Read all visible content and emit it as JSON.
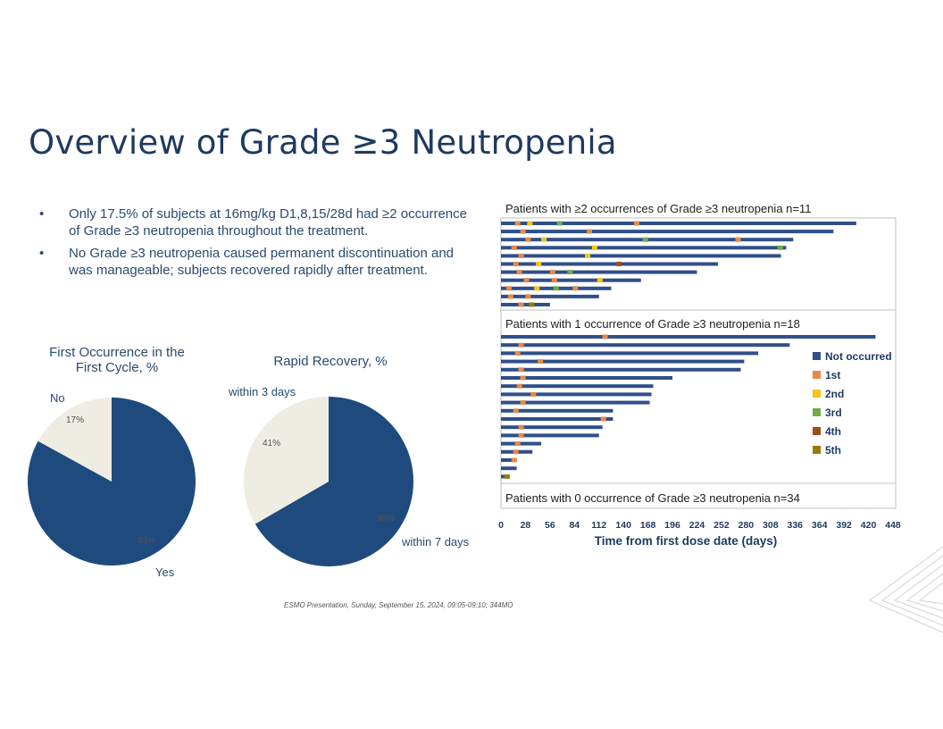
{
  "title": "Overview of Grade ≥3 Neutropenia",
  "bullets": [
    "Only 17.5% of subjects at 16mg/kg D1,8,15/28d had ≥2 occurrence of Grade ≥3 neutropenia throughout the treatment.",
    "No Grade ≥3 neutropenia caused permanent discontinuation and was manageable; subjects recovered rapidly after treatment."
  ],
  "bullet_marker": "•",
  "footer": "ESMO Presentation, Sunday, September 15, 2024, 09:05-09:10; 344MO",
  "colors": {
    "navy": "#1f4a7d",
    "beige": "#eeece3",
    "orange": "#e8894a",
    "yellow": "#f5c518",
    "green": "#70ad47",
    "brown": "#9c4f19",
    "olive": "#9a7b0a"
  },
  "chart_data": [
    {
      "type": "pie",
      "title": "First Occurrence in the First Cycle, %",
      "title_lines": [
        "First Occurrence in the",
        "First Cycle, %"
      ],
      "labels": [
        "Yes",
        "No"
      ],
      "values": [
        83,
        17
      ],
      "value_labels": [
        "83%",
        "17%"
      ]
    },
    {
      "type": "pie",
      "title": "Rapid Recovery, %",
      "labels": [
        "within 7 days",
        "within 3 days"
      ],
      "values": [
        90,
        41
      ],
      "value_labels": [
        "90%",
        "41%"
      ],
      "note": "slices drawn as 2:1 proportion as shown"
    },
    {
      "type": "bar",
      "orientation": "horizontal",
      "subtype": "swimmer",
      "xlabel": "Time from first dose date (days)",
      "xticks": [
        0,
        28,
        56,
        84,
        112,
        140,
        168,
        196,
        224,
        252,
        280,
        308,
        336,
        364,
        392,
        420,
        448
      ],
      "xlim": [
        0,
        448
      ],
      "legend": [
        "Not occurred",
        "1st",
        "2nd",
        "3rd",
        "4th",
        "5th"
      ],
      "legend_position": "right",
      "groups": [
        {
          "label": "Patients with ≥2 occurrences of Grade ≥3 neutropenia n=11",
          "patients": [
            {
              "end": 406,
              "events": [
                [
                  16,
                  1
                ],
                [
                  30,
                  2
                ],
                [
                  64,
                  3
                ],
                [
                  152,
                  1
                ]
              ]
            },
            {
              "end": 380,
              "events": [
                [
                  22,
                  1
                ],
                [
                  98,
                  1
                ]
              ]
            },
            {
              "end": 334,
              "events": [
                [
                  28,
                  1
                ],
                [
                  46,
                  2
                ],
                [
                  162,
                  3
                ],
                [
                  268,
                  1
                ]
              ]
            },
            {
              "end": 326,
              "events": [
                [
                  12,
                  1
                ],
                [
                  104,
                  2
                ],
                [
                  316,
                  3
                ]
              ]
            },
            {
              "end": 320,
              "events": [
                [
                  20,
                  1
                ],
                [
                  96,
                  2
                ]
              ]
            },
            {
              "end": 248,
              "events": [
                [
                  14,
                  1
                ],
                [
                  40,
                  2
                ],
                [
                  132,
                  4
                ]
              ]
            },
            {
              "end": 224,
              "events": [
                [
                  18,
                  1
                ],
                [
                  56,
                  1
                ],
                [
                  76,
                  3
                ]
              ]
            },
            {
              "end": 160,
              "events": [
                [
                  26,
                  1
                ],
                [
                  58,
                  1
                ],
                [
                  110,
                  2
                ]
              ]
            },
            {
              "end": 126,
              "events": [
                [
                  6,
                  1
                ],
                [
                  38,
                  2
                ],
                [
                  60,
                  3
                ],
                [
                  82,
                  1
                ]
              ]
            },
            {
              "end": 112,
              "events": [
                [
                  8,
                  1
                ],
                [
                  28,
                  1
                ]
              ]
            },
            {
              "end": 56,
              "events": [
                [
                  20,
                  1
                ],
                [
                  32,
                  5
                ]
              ]
            }
          ]
        },
        {
          "label": "Patients with 1 occurrence of Grade ≥3 neutropenia n=18",
          "patients": [
            {
              "end": 428,
              "events": [
                [
                  116,
                  1
                ]
              ]
            },
            {
              "end": 330,
              "events": [
                [
                  20,
                  1
                ]
              ]
            },
            {
              "end": 294,
              "events": [
                [
                  16,
                  1
                ]
              ]
            },
            {
              "end": 278,
              "events": [
                [
                  42,
                  1
                ]
              ]
            },
            {
              "end": 274,
              "events": [
                [
                  20,
                  1
                ]
              ]
            },
            {
              "end": 196,
              "events": [
                [
                  22,
                  1
                ]
              ]
            },
            {
              "end": 174,
              "events": [
                [
                  18,
                  1
                ]
              ]
            },
            {
              "end": 172,
              "events": [
                [
                  34,
                  1
                ]
              ]
            },
            {
              "end": 170,
              "events": [
                [
                  22,
                  1
                ]
              ]
            },
            {
              "end": 128,
              "events": [
                [
                  14,
                  1
                ]
              ]
            },
            {
              "end": 128,
              "events": [
                [
                  114,
                  1
                ]
              ]
            },
            {
              "end": 116,
              "events": [
                [
                  20,
                  1
                ]
              ]
            },
            {
              "end": 112,
              "events": [
                [
                  20,
                  1
                ]
              ]
            },
            {
              "end": 46,
              "events": [
                [
                  16,
                  1
                ]
              ]
            },
            {
              "end": 36,
              "events": [
                [
                  14,
                  1
                ]
              ]
            },
            {
              "end": 18,
              "events": [
                [
                  12,
                  1
                ]
              ]
            },
            {
              "end": 18,
              "events": []
            },
            {
              "end": 8,
              "events": [
                [
                  4,
                  5
                ]
              ]
            }
          ]
        },
        {
          "label": "Patients with 0 occurrence of Grade ≥3 neutropenia n=34",
          "patients": []
        }
      ]
    }
  ]
}
